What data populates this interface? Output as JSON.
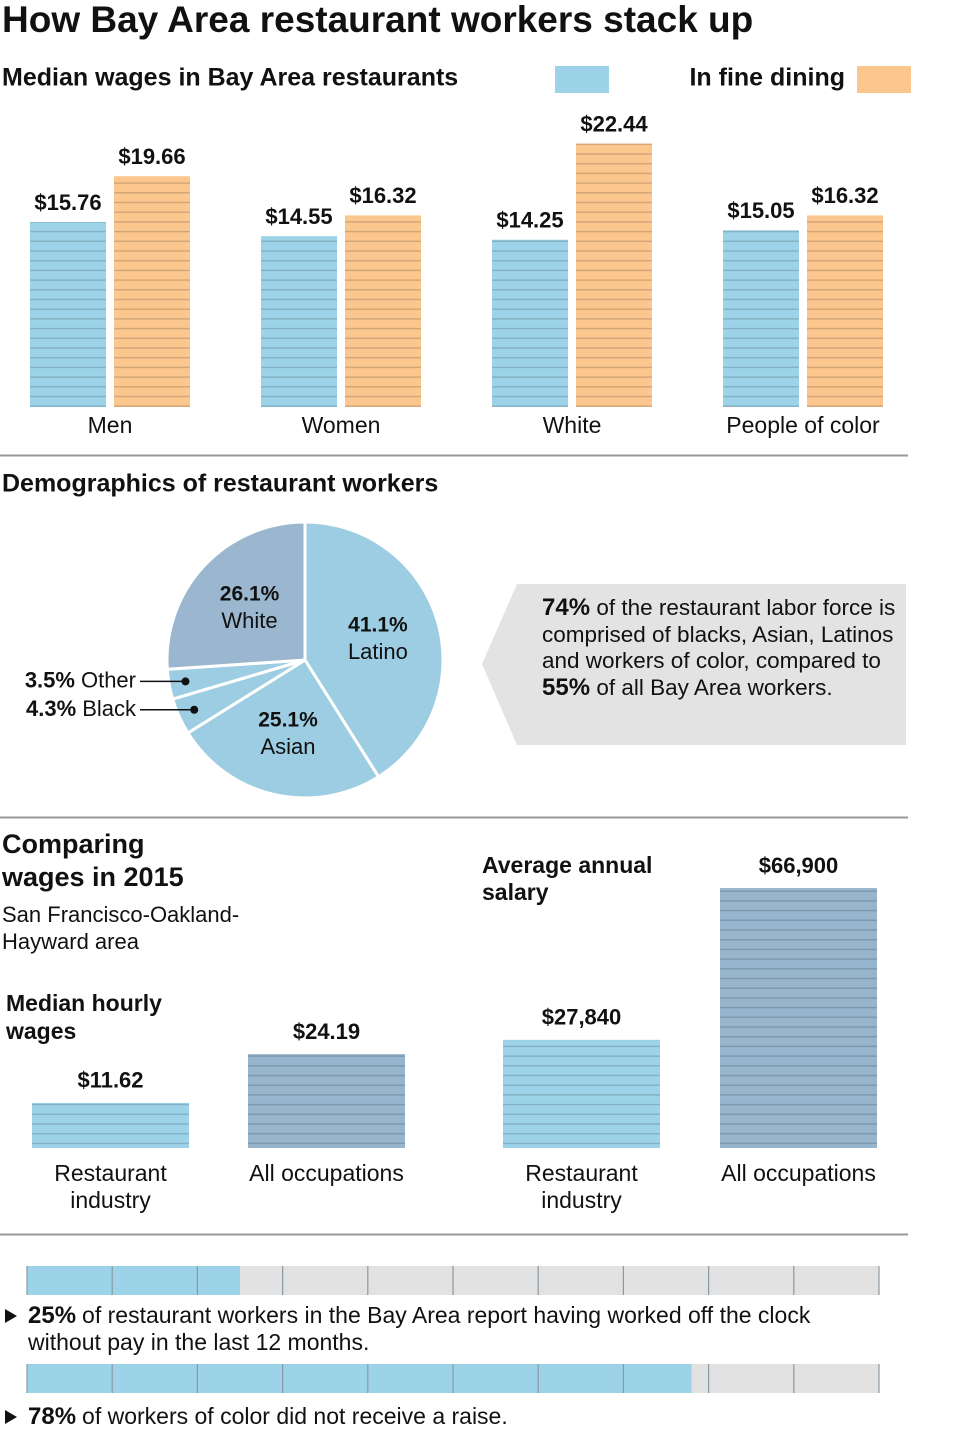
{
  "title": "How Bay Area restaurant workers stack up",
  "section_title": "Comparing wages in 2015",
  "section_subtitle": "San Francisco-Oakland-Hayward area",
  "chart_data": [
    {
      "type": "grouped-bar",
      "categories": [
        "Men",
        "Women",
        "White",
        "People of color"
      ],
      "series": [
        {
          "name": "Median wages in Bay Area restaurants",
          "color": "#9dd3e8",
          "values": [
            15.76,
            14.55,
            14.25,
            15.05
          ],
          "value_labels": [
            "$15.76",
            "$14.55",
            "$14.25",
            "$15.05"
          ]
        },
        {
          "name": "In fine dining",
          "color": "#fcc68f",
          "values": [
            19.66,
            16.32,
            22.44,
            16.32
          ],
          "value_labels": [
            "$19.66",
            "$16.32",
            "$22.44",
            "$16.32"
          ]
        }
      ],
      "ylim": [
        0,
        25
      ]
    },
    {
      "type": "pie",
      "title": "Demographics of restaurant workers",
      "categories": [
        "Latino",
        "Asian",
        "Black",
        "Other",
        "White"
      ],
      "values": [
        41.1,
        25.1,
        4.3,
        3.5,
        26.1
      ],
      "value_labels": [
        "41.1%",
        "25.1%",
        "4.3%",
        "3.5%",
        "26.1%"
      ],
      "colors": [
        "#9dcde3",
        "#9dcde3",
        "#9dcde3",
        "#9dcde3",
        "#9ab7cf"
      ],
      "note": [
        "74%",
        "of the restaurant labor force is comprised of blacks, Asian, Latinos and workers of color, compared to",
        "55%",
        "of all Bay Area workers."
      ]
    },
    {
      "type": "bar",
      "title": "Median hourly wages",
      "categories": [
        "Restaurant industry",
        "All occupations"
      ],
      "values": [
        11.62,
        24.19
      ],
      "value_labels": [
        "$11.62",
        "$24.19"
      ],
      "colors": [
        "#9dd3e8",
        "#97b5cd"
      ],
      "ylim": [
        0,
        30
      ]
    },
    {
      "type": "bar",
      "title": "Average annual salary",
      "categories": [
        "Restaurant industry",
        "All occupations"
      ],
      "values": [
        27840,
        66900
      ],
      "value_labels": [
        "$27,840",
        "$66,900"
      ],
      "colors": [
        "#9dd3e8",
        "#97b5cd"
      ],
      "ylim": [
        0,
        70000
      ]
    },
    {
      "type": "progress",
      "categories": [
        "of restaurant workers in the Bay Area report having worked off the clock without pay in the last 12 months.",
        "of workers of color did not receive a raise."
      ],
      "values": [
        25,
        78
      ],
      "value_labels": [
        "25%",
        "78%"
      ],
      "color": "#9dd3e8",
      "background": "#e2e2e2",
      "xlim": [
        0,
        100
      ],
      "xticks": [
        0,
        10,
        20,
        30,
        40,
        50,
        60,
        70,
        80,
        90,
        100
      ]
    }
  ]
}
